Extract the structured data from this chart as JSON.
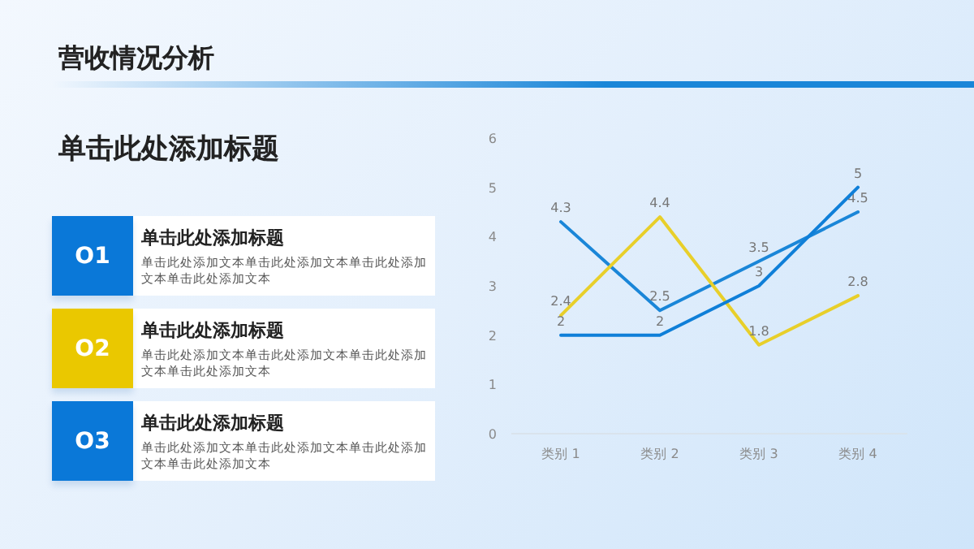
{
  "chart_data": [
    {
      "type": "other",
      "title": "营收情况分析",
      "subtitle": "单击此处添加标题",
      "colors": [
        "#0a78d8",
        "#eac800",
        "#0a78d8"
      ],
      "annotations": [
        "O1",
        "单击此处添加标题",
        "单击此处添加文本单击此处添加文本单击此处添加文本单击此处添加文本",
        "O2",
        "单击此处添加标题",
        "单击此处添加文本单击此处添加文本单击此处添加文本单击此处添加文本",
        "O3",
        "单击此处添加标题",
        "单击此处添加文本单击此处添加文本单击此处添加文本单击此处添加文本"
      ]
    },
    {
      "type": "line",
      "categories": [
        "类别 1",
        "类别 2",
        "类别 3",
        "类别 4"
      ],
      "series": [
        {
          "color": "#1a86d8",
          "values": [
            4.3,
            2.5,
            3.5,
            4.5
          ]
        },
        {
          "color": "#e8cf2a",
          "values": [
            2.4,
            4.4,
            1.8,
            2.8
          ]
        },
        {
          "color": "#0f7fd8",
          "values": [
            2,
            2,
            3,
            5
          ]
        }
      ],
      "ylim": [
        0,
        6
      ],
      "yticks": [
        0,
        1,
        2,
        3,
        4,
        5,
        6
      ],
      "data_labels": true,
      "grid": false,
      "marker": "none",
      "line_style": "solid"
    }
  ]
}
